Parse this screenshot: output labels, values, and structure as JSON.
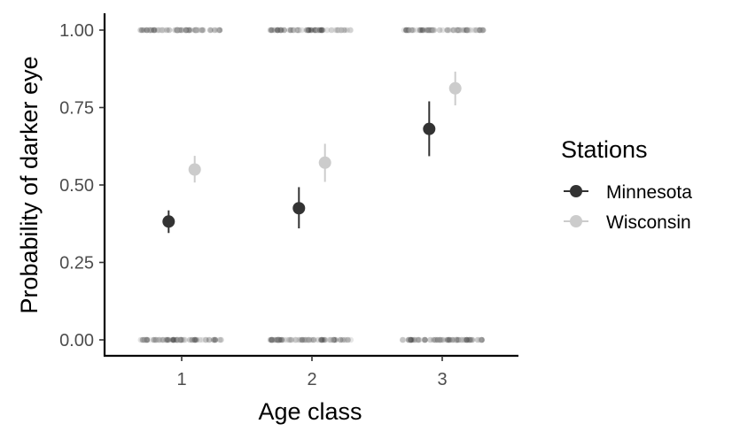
{
  "chart_data": {
    "type": "scatter",
    "xlabel": "Age class",
    "ylabel": "Probability of darker eye",
    "categories": [
      "1",
      "2",
      "3"
    ],
    "ylim": [
      -0.05,
      1.05
    ],
    "yticks": [
      0.0,
      0.25,
      0.5,
      0.75,
      1.0
    ],
    "ytick_labels": [
      "0.00",
      "0.25",
      "0.50",
      "0.75",
      "1.00"
    ],
    "grid": false,
    "legend": {
      "title": "Stations",
      "position": "right",
      "entries": [
        {
          "name": "Minnesota",
          "color": "#333333"
        },
        {
          "name": "Wisconsin",
          "color": "#cccccc"
        }
      ]
    },
    "series": [
      {
        "name": "Minnesota",
        "color": "#333333",
        "dodge": -0.05,
        "points": [
          {
            "x": "1",
            "y": 0.382,
            "lower": 0.345,
            "upper": 0.418
          },
          {
            "x": "2",
            "y": 0.425,
            "lower": 0.36,
            "upper": 0.493
          },
          {
            "x": "3",
            "y": 0.681,
            "lower": 0.593,
            "upper": 0.77
          }
        ]
      },
      {
        "name": "Wisconsin",
        "color": "#cccccc",
        "dodge": 0.05,
        "points": [
          {
            "x": "1",
            "y": 0.55,
            "lower": 0.508,
            "upper": 0.594
          },
          {
            "x": "2",
            "y": 0.572,
            "lower": 0.51,
            "upper": 0.633
          },
          {
            "x": "3",
            "y": 0.812,
            "lower": 0.757,
            "upper": 0.866
          }
        ]
      }
    ],
    "raw_observations": [
      {
        "x": "1",
        "y": 1,
        "range": [
          0.68,
          1.32
        ]
      },
      {
        "x": "1",
        "y": 0,
        "range": [
          0.68,
          1.32
        ]
      },
      {
        "x": "2",
        "y": 1,
        "range": [
          0.68,
          1.32
        ]
      },
      {
        "x": "2",
        "y": 0,
        "range": [
          0.68,
          1.32
        ]
      },
      {
        "x": "3",
        "y": 1,
        "range": [
          0.68,
          1.32
        ]
      },
      {
        "x": "3",
        "y": 0,
        "range": [
          0.68,
          1.32
        ]
      }
    ]
  }
}
